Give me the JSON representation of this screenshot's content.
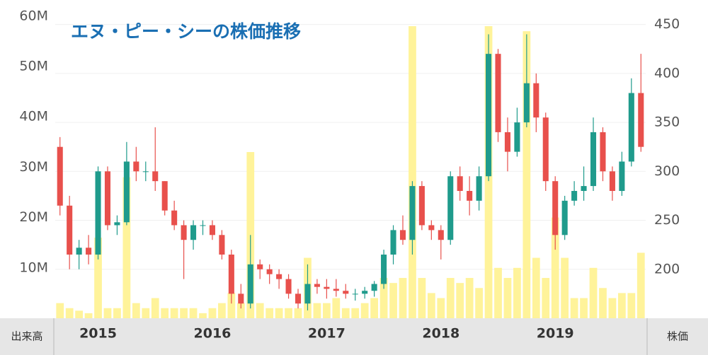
{
  "chart_data": {
    "type": "candlestick",
    "title": "エヌ・ピー・シーの株価推移",
    "ylabel": "出来高",
    "y2label": "株価",
    "categories": [
      null,
      null,
      null,
      null,
      "2015",
      null,
      null,
      null,
      null,
      null,
      null,
      null,
      null,
      null,
      null,
      null,
      "2016",
      null,
      null,
      null,
      null,
      null,
      null,
      null,
      null,
      null,
      null,
      null,
      "2017",
      null,
      null,
      null,
      null,
      null,
      null,
      null,
      null,
      null,
      null,
      null,
      "2018",
      null,
      null,
      null,
      null,
      null,
      null,
      null,
      null,
      null,
      null,
      null,
      "2019",
      null,
      null,
      null,
      null,
      null,
      null,
      null,
      null,
      null
    ],
    "open": [
      325,
      265,
      215,
      222,
      215,
      300,
      245,
      248,
      310,
      300,
      300,
      290,
      260,
      245,
      230,
      245,
      245,
      235,
      215,
      175,
      165,
      205,
      200,
      195,
      190,
      175,
      165,
      185,
      182,
      180,
      178,
      175,
      175,
      178,
      185,
      215,
      240,
      230,
      285,
      245,
      240,
      230,
      295,
      280,
      270,
      295,
      420,
      340,
      320,
      350,
      390,
      355,
      290,
      235,
      270,
      280,
      285,
      340,
      300,
      280,
      310,
      380
    ],
    "high": [
      335,
      275,
      230,
      235,
      305,
      305,
      255,
      330,
      325,
      310,
      345,
      290,
      270,
      250,
      250,
      250,
      250,
      240,
      220,
      185,
      235,
      210,
      205,
      200,
      195,
      180,
      205,
      190,
      190,
      190,
      185,
      180,
      182,
      188,
      220,
      245,
      255,
      290,
      290,
      250,
      245,
      300,
      305,
      295,
      305,
      440,
      425,
      355,
      365,
      440,
      400,
      360,
      295,
      275,
      290,
      305,
      355,
      345,
      305,
      320,
      395,
      420
    ],
    "low": [
      255,
      200,
      200,
      205,
      210,
      240,
      235,
      245,
      290,
      290,
      280,
      255,
      240,
      190,
      220,
      235,
      230,
      210,
      165,
      160,
      160,
      190,
      185,
      180,
      170,
      160,
      158,
      175,
      170,
      172,
      170,
      168,
      170,
      172,
      180,
      205,
      225,
      215,
      240,
      230,
      210,
      225,
      270,
      255,
      260,
      290,
      330,
      300,
      315,
      345,
      340,
      280,
      220,
      230,
      265,
      270,
      280,
      290,
      270,
      275,
      305,
      320
    ],
    "close": [
      265,
      215,
      222,
      215,
      300,
      245,
      248,
      310,
      300,
      300,
      290,
      260,
      245,
      230,
      245,
      245,
      235,
      215,
      175,
      165,
      205,
      200,
      195,
      190,
      175,
      165,
      185,
      182,
      180,
      178,
      175,
      175,
      178,
      185,
      215,
      240,
      230,
      285,
      245,
      240,
      230,
      295,
      280,
      270,
      295,
      420,
      340,
      320,
      350,
      390,
      355,
      290,
      235,
      270,
      280,
      285,
      340,
      300,
      280,
      310,
      380,
      325
    ],
    "volume": [
      3000000,
      2000000,
      1500000,
      1000000,
      16000000,
      2000000,
      2000000,
      28000000,
      3000000,
      2000000,
      4000000,
      2000000,
      2000000,
      2000000,
      2000000,
      1000000,
      2000000,
      3000000,
      5000000,
      3000000,
      33000000,
      3000000,
      2000000,
      2000000,
      2000000,
      2000000,
      12000000,
      3000000,
      3000000,
      4000000,
      2000000,
      2000000,
      3000000,
      4000000,
      8000000,
      7000000,
      8000000,
      58000000,
      8000000,
      5000000,
      4000000,
      8000000,
      7000000,
      8000000,
      6000000,
      58000000,
      10000000,
      8000000,
      10000000,
      57000000,
      12000000,
      8000000,
      20000000,
      12000000,
      4000000,
      4000000,
      10000000,
      6000000,
      4000000,
      5000000,
      5000000,
      13000000
    ],
    "up_color": "#1f9b8c",
    "down_color": "#e8504c",
    "volume_color": "#fff39a",
    "ylim": [
      0,
      63200000
    ],
    "yticks": [
      {
        "value": 10000000,
        "label": "10M"
      },
      {
        "value": 20000000,
        "label": "20M"
      },
      {
        "value": 30000000,
        "label": "30M"
      },
      {
        "value": 40000000,
        "label": "40M"
      },
      {
        "value": 50000000,
        "label": "50M"
      },
      {
        "value": 60000000,
        "label": "60M"
      }
    ],
    "y2lim": [
      150,
      475
    ],
    "y2ticks": [
      200,
      250,
      300,
      350,
      400,
      450
    ],
    "grid": true
  }
}
